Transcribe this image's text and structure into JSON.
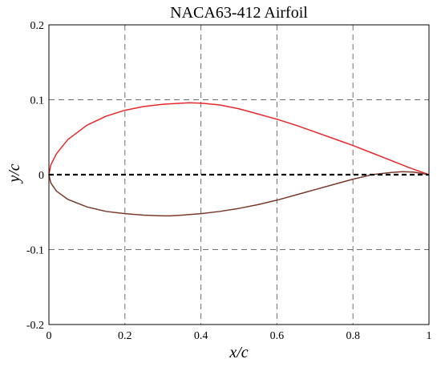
{
  "chart_data": {
    "type": "line",
    "title": "NACA63-412 Airfoil",
    "xlabel": "x/c",
    "ylabel": "y/c",
    "xlim": [
      0,
      1
    ],
    "ylim": [
      -0.2,
      0.2
    ],
    "xticks": [
      0,
      0.2,
      0.4,
      0.6,
      0.8,
      1
    ],
    "xtick_labels": [
      "0",
      "0.2",
      "0.4",
      "0.6",
      "0.8",
      "1"
    ],
    "yticks": [
      -0.2,
      -0.1,
      0,
      0.1,
      0.2
    ],
    "ytick_labels": [
      "-0.2",
      "-0.1",
      "0",
      "0.1",
      "0.2"
    ],
    "grid": true,
    "grid_style": "dashed",
    "series": [
      {
        "color": "#e8272b",
        "style": "solid",
        "x": [
          0,
          0.005,
          0.02,
          0.05,
          0.1,
          0.15,
          0.2,
          0.25,
          0.3,
          0.35,
          0.37,
          0.4,
          0.45,
          0.5,
          0.55,
          0.6,
          0.65,
          0.7,
          0.75,
          0.8,
          0.85,
          0.9,
          0.95,
          1
        ],
        "y": [
          0,
          0.013,
          0.028,
          0.047,
          0.066,
          0.078,
          0.086,
          0.091,
          0.094,
          0.0955,
          0.096,
          0.0955,
          0.093,
          0.088,
          0.081,
          0.074,
          0.066,
          0.057,
          0.048,
          0.039,
          0.029,
          0.019,
          0.009,
          0
        ]
      },
      {
        "color": "#7a3a2a",
        "style": "solid",
        "x": [
          0,
          0.005,
          0.02,
          0.05,
          0.1,
          0.15,
          0.2,
          0.25,
          0.3,
          0.32,
          0.35,
          0.4,
          0.45,
          0.5,
          0.55,
          0.6,
          0.65,
          0.7,
          0.75,
          0.8,
          0.85,
          0.9,
          0.93,
          0.96,
          1
        ],
        "y": [
          0,
          -0.011,
          -0.022,
          -0.033,
          -0.043,
          -0.049,
          -0.052,
          -0.054,
          -0.055,
          -0.055,
          -0.054,
          -0.052,
          -0.049,
          -0.045,
          -0.04,
          -0.034,
          -0.027,
          -0.02,
          -0.013,
          -0.006,
          0.0,
          0.003,
          0.004,
          0.0035,
          0
        ]
      },
      {
        "color": "#000000",
        "style": "dashed",
        "x": [
          0,
          1
        ],
        "y": [
          0,
          0
        ]
      }
    ]
  }
}
